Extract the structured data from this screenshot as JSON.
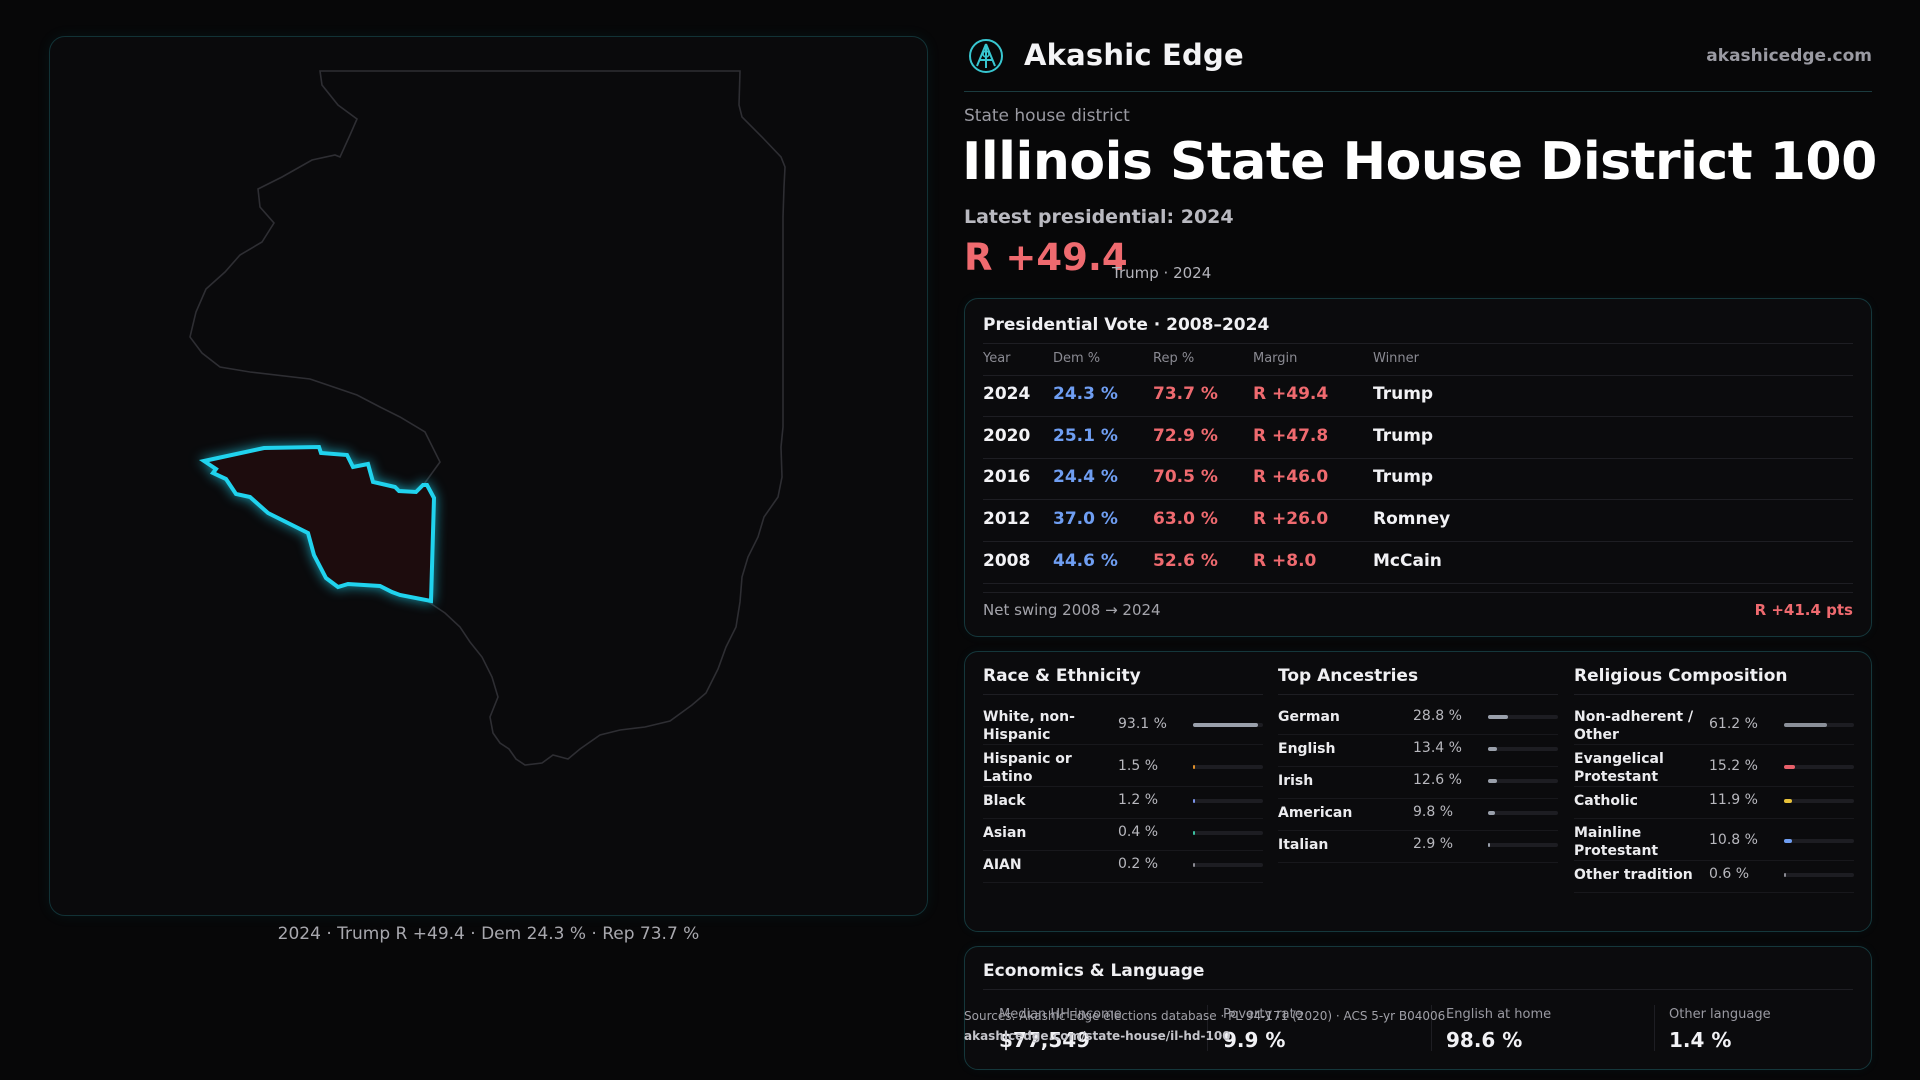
{
  "brand": {
    "name": "Akashic Edge",
    "url": "akashicedge.com"
  },
  "header": {
    "kicker": "State house district",
    "title": "Illinois State House District 100",
    "latest_label": "Latest presidential: 2024",
    "margin": "R +49.4",
    "margin_sub": "Trump · 2024"
  },
  "map": {
    "caption": "2024 · Trump R +49.4 · Dem 24.3 % · Rep 73.7 %",
    "district_color": "#20d3ee"
  },
  "presidential": {
    "title": "Presidential Vote · 2008–2024",
    "headers": [
      "Year",
      "Dem %",
      "Rep %",
      "Margin",
      "Winner"
    ],
    "rows": [
      {
        "year": "2024",
        "dem": "24.3 %",
        "rep": "73.7 %",
        "margin": "R +49.4",
        "winner": "Trump"
      },
      {
        "year": "2020",
        "dem": "25.1 %",
        "rep": "72.9 %",
        "margin": "R +47.8",
        "winner": "Trump"
      },
      {
        "year": "2016",
        "dem": "24.4 %",
        "rep": "70.5 %",
        "margin": "R +46.0",
        "winner": "Trump"
      },
      {
        "year": "2012",
        "dem": "37.0 %",
        "rep": "63.0 %",
        "margin": "R +26.0",
        "winner": "Romney"
      },
      {
        "year": "2008",
        "dem": "44.6 %",
        "rep": "52.6 %",
        "margin": "R +8.0",
        "winner": "McCain"
      }
    ],
    "swing_label": "Net swing 2008 → 2024",
    "swing_value": "R +41.4 pts"
  },
  "race": {
    "title": "Race & Ethnicity",
    "items": [
      {
        "label": "White, non-Hispanic",
        "pct": "93.1 %",
        "value": 93.1,
        "color": "#9aa0ab"
      },
      {
        "label": "Hispanic or Latino",
        "pct": "1.5 %",
        "value": 1.5,
        "color": "#e0902a"
      },
      {
        "label": "Black",
        "pct": "1.2 %",
        "value": 1.2,
        "color": "#7b93e8"
      },
      {
        "label": "Asian",
        "pct": "0.4 %",
        "value": 0.4,
        "color": "#3cc0a0"
      },
      {
        "label": "AIAN",
        "pct": "0.2 %",
        "value": 0.2,
        "color": "#8a8a92"
      }
    ]
  },
  "ancestry": {
    "title": "Top Ancestries",
    "items": [
      {
        "label": "German",
        "pct": "28.8 %",
        "value": 28.8,
        "color": "#9aa0ab"
      },
      {
        "label": "English",
        "pct": "13.4 %",
        "value": 13.4,
        "color": "#9aa0ab"
      },
      {
        "label": "Irish",
        "pct": "12.6 %",
        "value": 12.6,
        "color": "#9aa0ab"
      },
      {
        "label": "American",
        "pct": "9.8 %",
        "value": 9.8,
        "color": "#9aa0ab"
      },
      {
        "label": "Italian",
        "pct": "2.9 %",
        "value": 2.9,
        "color": "#9aa0ab"
      }
    ]
  },
  "religion": {
    "title": "Religious Composition",
    "items": [
      {
        "label": "Non-adherent / Other",
        "pct": "61.2 %",
        "value": 61.2,
        "color": "#8a8f98"
      },
      {
        "label": "Evangelical Protestant",
        "pct": "15.2 %",
        "value": 15.2,
        "color": "#e8606a"
      },
      {
        "label": "Catholic",
        "pct": "11.9 %",
        "value": 11.9,
        "color": "#e8c23a"
      },
      {
        "label": "Mainline Protestant",
        "pct": "10.8 %",
        "value": 10.8,
        "color": "#6f9ef2"
      },
      {
        "label": "Other tradition",
        "pct": "0.6 %",
        "value": 0.6,
        "color": "#8a8a92"
      }
    ]
  },
  "economics": {
    "title": "Economics & Language",
    "cells": [
      {
        "label": "Median HH income",
        "value": "$77,549"
      },
      {
        "label": "Poverty rate",
        "value": "9.9 %"
      },
      {
        "label": "English at home",
        "value": "98.6 %"
      },
      {
        "label": "Other language",
        "value": "1.4 %"
      }
    ]
  },
  "sources": {
    "text": "Sources: Akashic Edge elections database · PL 94-171 (2020) · ACS 5-yr B04006",
    "url": "akashicedge.com/state-house/il-hd-100"
  }
}
